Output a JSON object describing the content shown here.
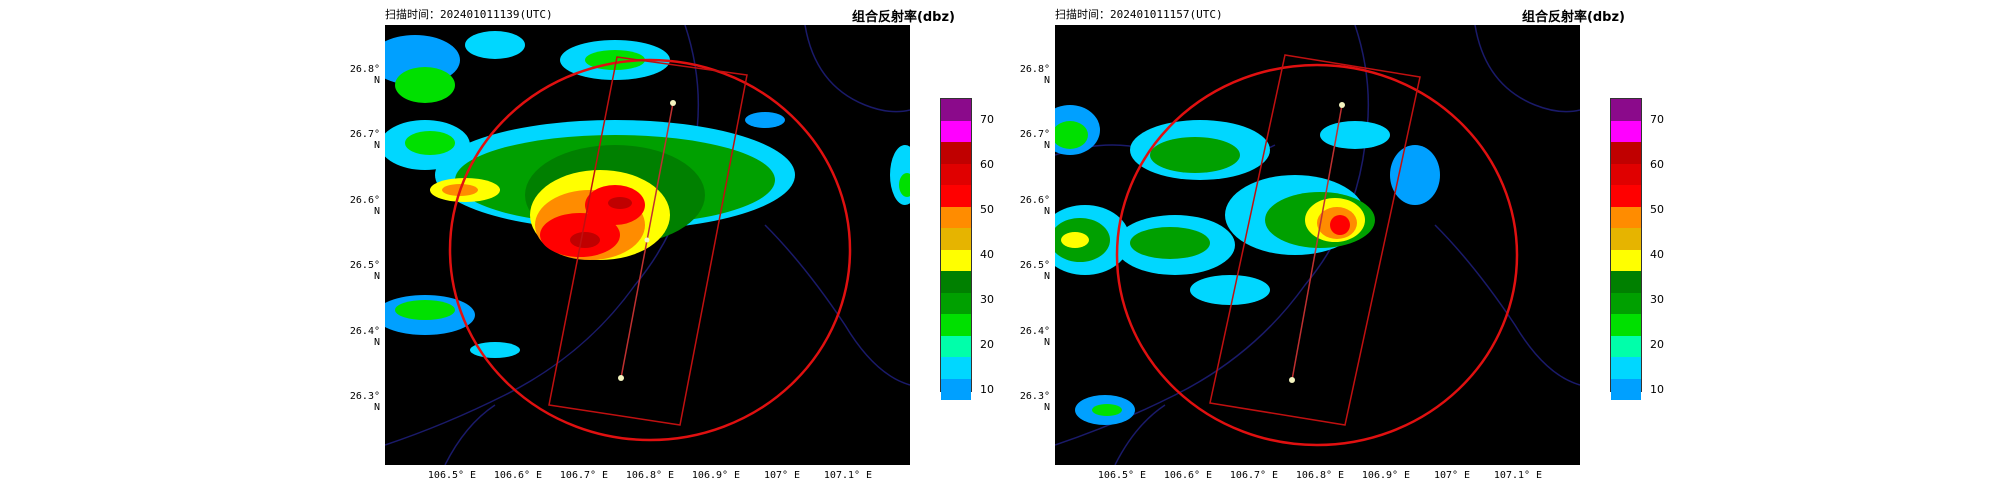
{
  "panels": [
    {
      "id": "left",
      "scan_time_label": "扫描时间：202401011139(UTC)",
      "title": "组合反射率(dbz)",
      "y_ticks": [
        "26.8° N",
        "26.7° N",
        "26.6° N",
        "26.5° N",
        "26.4° N",
        "26.3° N"
      ],
      "x_ticks": [
        "106.5° E",
        "106.6° E",
        "106.7° E",
        "106.8° E",
        "106.9° E",
        "107° E",
        "107.1° E"
      ]
    },
    {
      "id": "right",
      "scan_time_label": "扫描时间：202401011157(UTC)",
      "title": "组合反射率(dbz)",
      "y_ticks": [
        "26.8° N",
        "26.7° N",
        "26.6° N",
        "26.5° N",
        "26.4° N",
        "26.3° N"
      ],
      "x_ticks": [
        "106.5° E",
        "106.6° E",
        "106.7° E",
        "106.8° E",
        "106.9° E",
        "107° E",
        "107.1° E"
      ]
    }
  ],
  "colorbar": {
    "tick_labels": [
      "70",
      "60",
      "50",
      "40",
      "30",
      "20",
      "10"
    ],
    "colors": [
      "#8b0a8b",
      "#ff00ff",
      "#c00000",
      "#e00000",
      "#ff0000",
      "#ff8c00",
      "#e6b400",
      "#ffff00",
      "#008000",
      "#00a000",
      "#00e000",
      "#00ffaa",
      "#00d7ff",
      "#00a0ff"
    ]
  },
  "overlay_colors": {
    "circle": "#e01010",
    "rectangle": "#c01010",
    "track": "#c03030",
    "borders": "#1a1a6a"
  }
}
